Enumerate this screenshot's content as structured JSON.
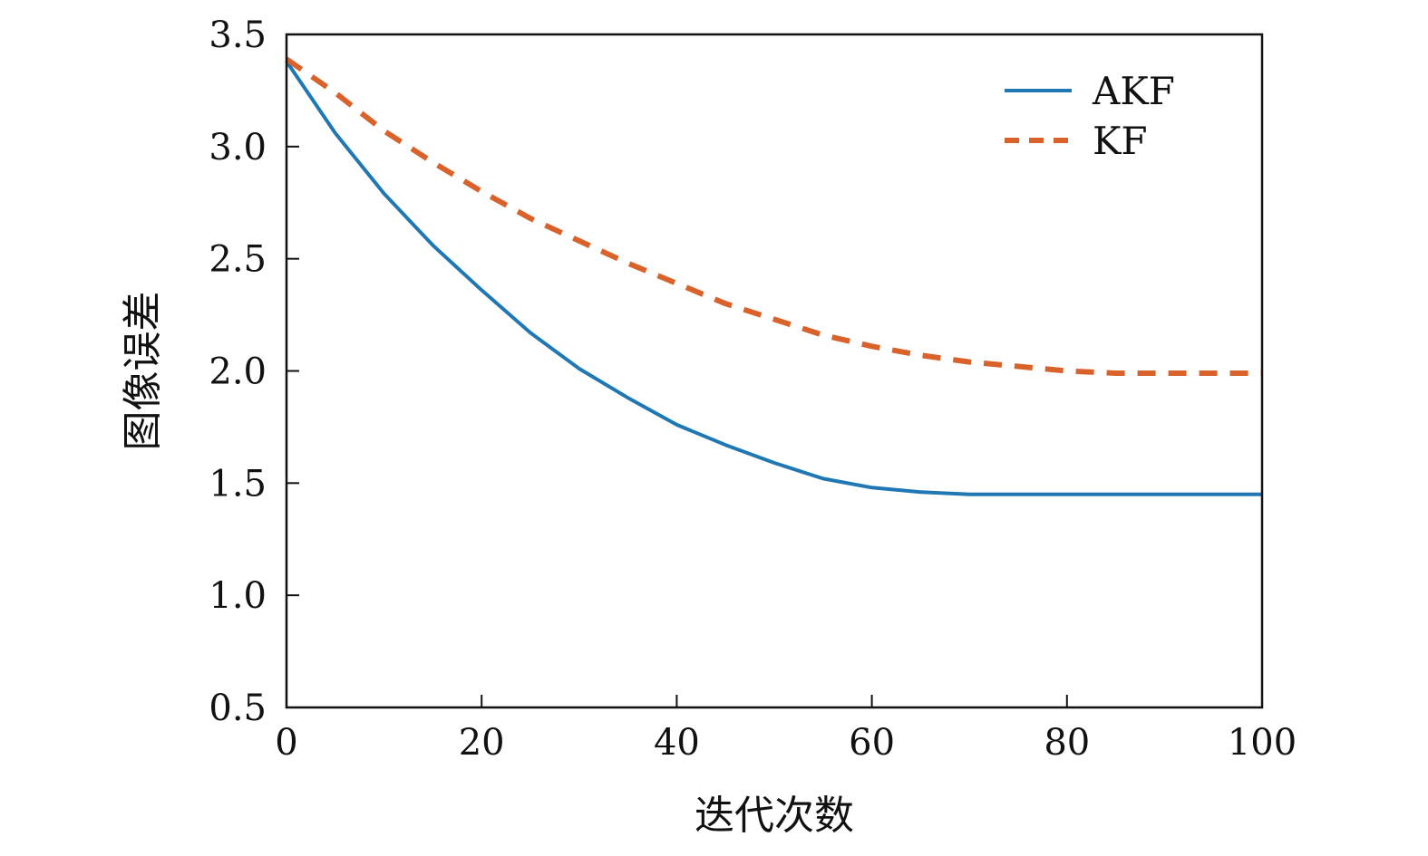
{
  "chart_data": {
    "type": "line",
    "title": "",
    "xlabel": "迭代次数",
    "ylabel": "图像误差",
    "xlim": [
      0,
      100
    ],
    "ylim": [
      0.5,
      3.5
    ],
    "xticks": [
      "0",
      "20",
      "40",
      "60",
      "80",
      "100"
    ],
    "yticks": [
      "0.5",
      "1.0",
      "1.5",
      "2.0",
      "2.5",
      "3.0",
      "3.5"
    ],
    "grid": false,
    "legend_position": "top-right",
    "series": [
      {
        "name": "AKF",
        "color": "#1f77b4",
        "style": "solid",
        "x": [
          0,
          5,
          10,
          15,
          20,
          25,
          30,
          35,
          40,
          45,
          50,
          55,
          60,
          65,
          70,
          80,
          90,
          100
        ],
        "y": [
          3.38,
          3.06,
          2.79,
          2.56,
          2.36,
          2.17,
          2.01,
          1.88,
          1.76,
          1.67,
          1.59,
          1.52,
          1.48,
          1.46,
          1.45,
          1.45,
          1.45,
          1.45
        ]
      },
      {
        "name": "KF",
        "color": "#d9622b",
        "style": "dashed",
        "x": [
          0,
          5,
          10,
          15,
          20,
          25,
          30,
          35,
          40,
          45,
          50,
          55,
          60,
          65,
          70,
          75,
          80,
          85,
          90,
          95,
          100
        ],
        "y": [
          3.39,
          3.24,
          3.07,
          2.93,
          2.8,
          2.68,
          2.58,
          2.48,
          2.39,
          2.3,
          2.23,
          2.16,
          2.11,
          2.07,
          2.04,
          2.02,
          2.0,
          1.99,
          1.99,
          1.99,
          1.99
        ]
      }
    ]
  }
}
